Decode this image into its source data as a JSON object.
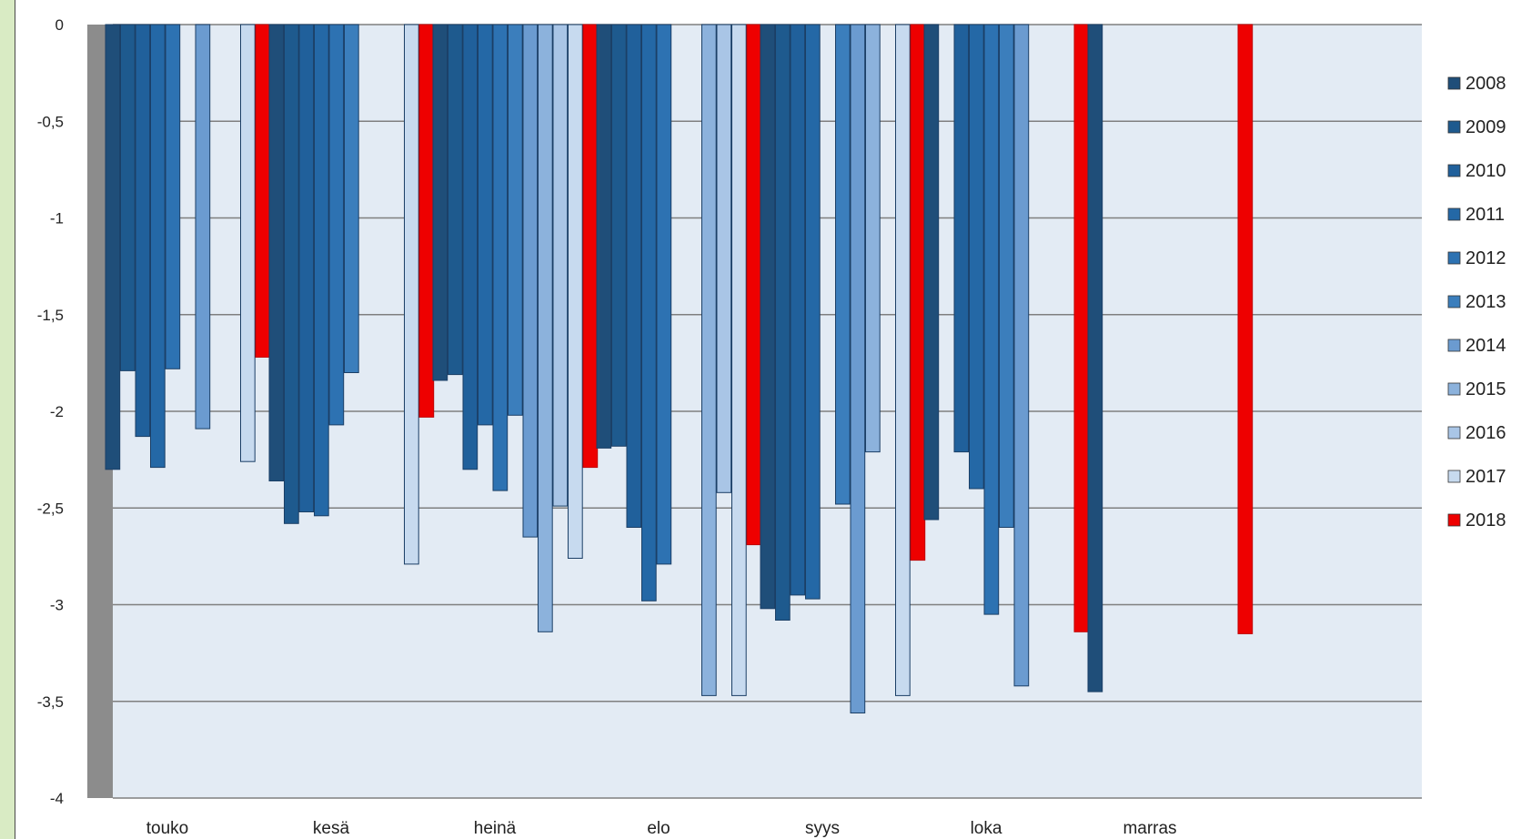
{
  "chart_data": {
    "type": "bar",
    "title": "",
    "xlabel": "",
    "ylabel": "",
    "ylim": [
      -4,
      0
    ],
    "yticks": [
      {
        "value": 0,
        "label": "0"
      },
      {
        "value": -0.5,
        "label": "-0,5"
      },
      {
        "value": -1,
        "label": "-1"
      },
      {
        "value": -1.5,
        "label": "-1,5"
      },
      {
        "value": -2,
        "label": "-2"
      },
      {
        "value": -2.5,
        "label": "-2,5"
      },
      {
        "value": -3,
        "label": "-3"
      },
      {
        "value": -3.5,
        "label": "-3,5"
      },
      {
        "value": -4,
        "label": "-4"
      }
    ],
    "grid": true,
    "legend_position": "right",
    "categories": [
      "touko",
      "kesä",
      "heinä",
      "elo",
      "syys",
      "loka",
      "marras"
    ],
    "series": [
      {
        "name": "2008",
        "color": "#1f4e79",
        "values": [
          -2.3,
          -2.36,
          -1.84,
          -2.19,
          -3.02,
          -2.56,
          -3.45
        ]
      },
      {
        "name": "2009",
        "color": "#1e5a8e",
        "values": [
          -1.79,
          -2.58,
          -1.81,
          -2.18,
          -3.08,
          null,
          null
        ]
      },
      {
        "name": "2010",
        "color": "#20609b",
        "values": [
          -2.13,
          -2.52,
          -2.3,
          -2.6,
          -2.95,
          -2.21,
          null
        ]
      },
      {
        "name": "2011",
        "color": "#2468a6",
        "values": [
          -2.29,
          -2.54,
          -2.07,
          -2.98,
          -2.97,
          -2.4,
          null
        ]
      },
      {
        "name": "2012",
        "color": "#2d72b2",
        "values": [
          -1.78,
          -2.07,
          -2.41,
          -2.79,
          null,
          -3.05,
          null
        ]
      },
      {
        "name": "2013",
        "color": "#3b7ebc",
        "values": [
          null,
          -1.8,
          -2.02,
          null,
          -2.48,
          -2.6,
          null
        ]
      },
      {
        "name": "2014",
        "color": "#6b9bd0",
        "values": [
          -2.09,
          null,
          -2.65,
          null,
          -3.56,
          -3.42,
          null
        ]
      },
      {
        "name": "2015",
        "color": "#8cb2dc",
        "values": [
          null,
          null,
          -3.14,
          -3.47,
          -2.21,
          null,
          null
        ]
      },
      {
        "name": "2016",
        "color": "#a9c5e6",
        "values": [
          null,
          null,
          -2.49,
          -2.42,
          null,
          null,
          null
        ]
      },
      {
        "name": "2017",
        "color": "#c7daef",
        "values": [
          -2.26,
          -2.79,
          -2.76,
          -3.47,
          -3.47,
          null,
          null
        ]
      },
      {
        "name": "2018",
        "color": "#ee0000",
        "values": [
          -1.72,
          -2.03,
          -2.29,
          -2.69,
          -2.77,
          -3.14,
          -3.15
        ]
      }
    ]
  }
}
